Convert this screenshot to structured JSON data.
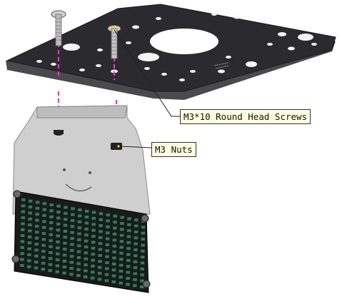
{
  "labels": {
    "screws": "M3*10 Round Head Screws",
    "nuts": "M3 Nuts"
  },
  "colors": {
    "plate": "#2a2a2e",
    "plate_edge": "#48484c",
    "bracket": "#c9c9c9",
    "led_panel": "#1b1b1b",
    "led_dot": "#2f8f6a",
    "guide_line": "#ff2bd6",
    "callout_bg": "#fffde0"
  }
}
